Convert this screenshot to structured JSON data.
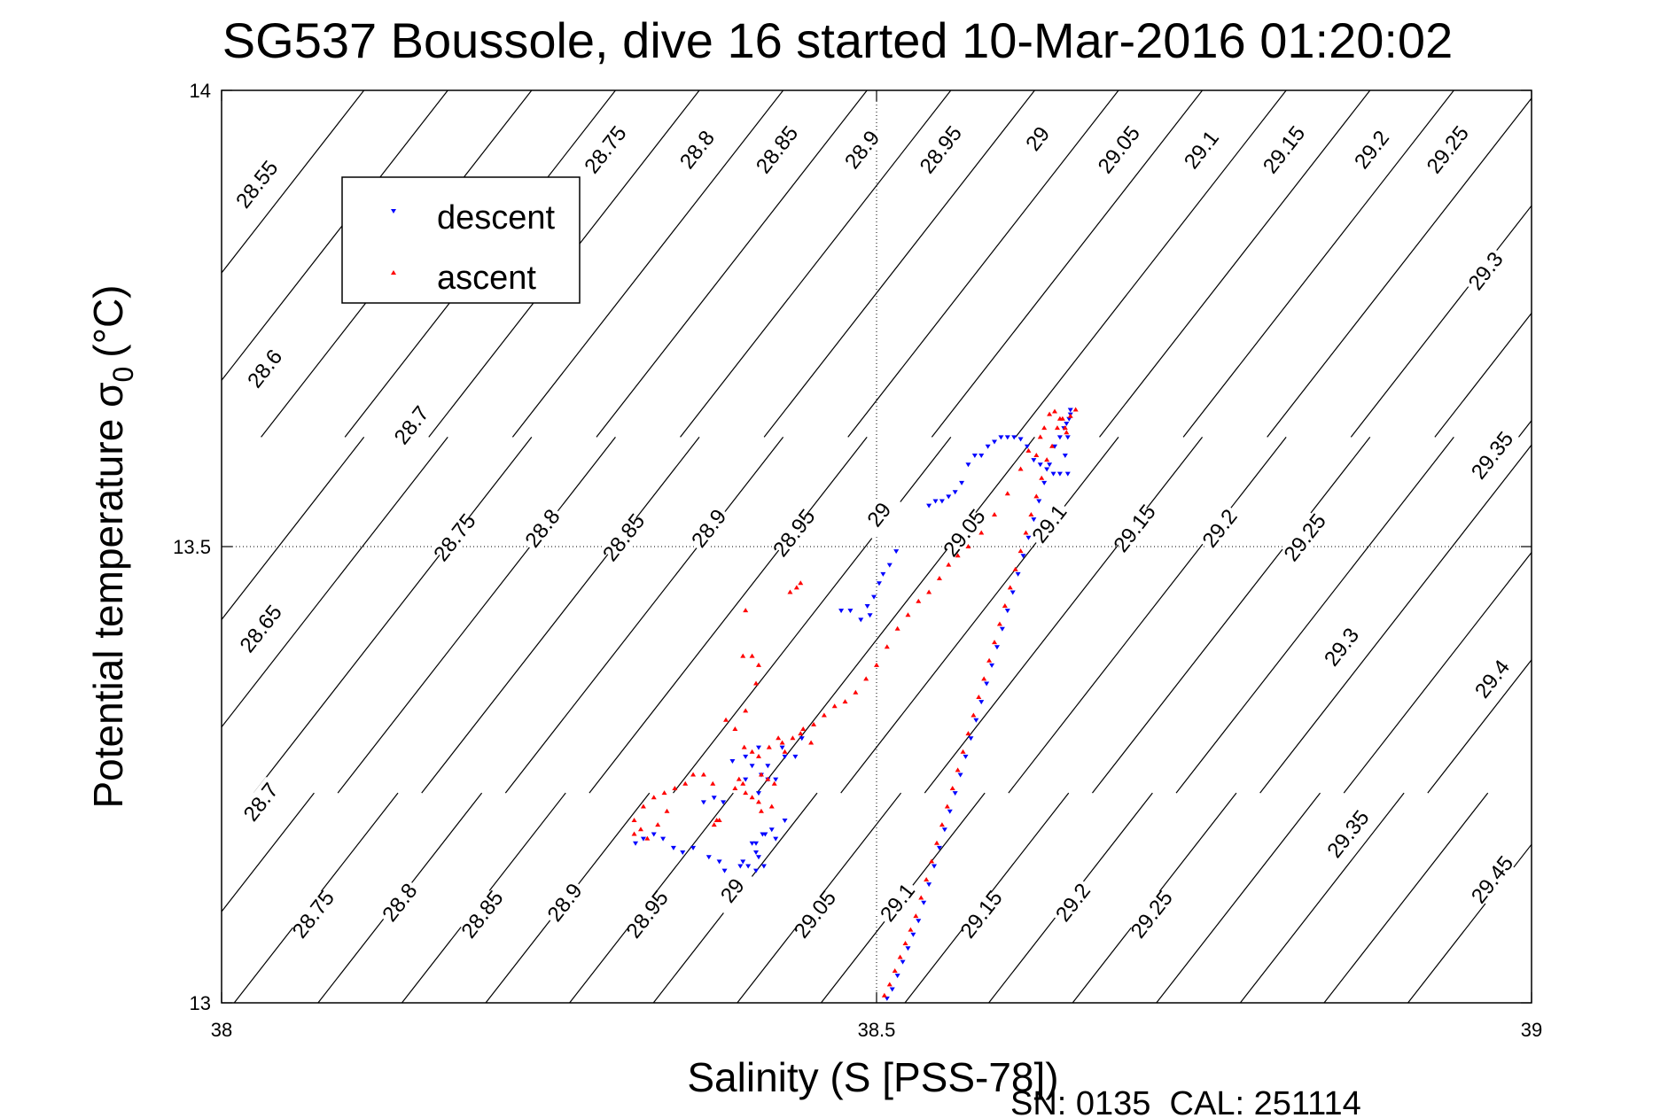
{
  "chart_data": {
    "type": "scatter",
    "title": "SG537 Boussole, dive 16 started 10-Mar-2016 01:20:02",
    "xlabel": "Salinity (S [PSS-78])",
    "ylabel_main": "Potential temperature σ",
    "ylabel_sub": "0",
    "ylabel_unit": "(°C)",
    "footer": "SN: 0135  CAL: 251114",
    "xlim": [
      38,
      39
    ],
    "ylim": [
      13,
      14
    ],
    "x_ticks": [
      {
        "value": 38,
        "label": "38"
      },
      {
        "value": 38.5,
        "label": "38.5"
      },
      {
        "value": 39,
        "label": "39"
      }
    ],
    "y_ticks": [
      {
        "value": 13,
        "label": "13"
      },
      {
        "value": 13.5,
        "label": "13.5"
      },
      {
        "value": 14,
        "label": "14"
      }
    ],
    "grid": true,
    "legend_position": "top-left",
    "series": [
      {
        "name": "descent",
        "color": "#0000ff",
        "marker": "triangle-down",
        "x": [
          38.508,
          38.512,
          38.516,
          38.52,
          38.524,
          38.528,
          38.532,
          38.536,
          38.54,
          38.544,
          38.548,
          38.552,
          38.556,
          38.56,
          38.564,
          38.568,
          38.572,
          38.576,
          38.58,
          38.584,
          38.588,
          38.592,
          38.596,
          38.6,
          38.604,
          38.608,
          38.612,
          38.616,
          38.62,
          38.624,
          38.628,
          38.632,
          38.636,
          38.64,
          38.643,
          38.645,
          38.647,
          38.648,
          38.648,
          38.646,
          38.644,
          38.646,
          38.64,
          38.635,
          38.63,
          38.625,
          38.62,
          38.615,
          38.61,
          38.605,
          38.6,
          38.595,
          38.59,
          38.585,
          38.58,
          38.575,
          38.57,
          38.565,
          38.56,
          38.555,
          38.55,
          38.545,
          38.54,
          38.493,
          38.498,
          38.502,
          38.505,
          38.51,
          38.515,
          38.473,
          38.48,
          38.488,
          38.495,
          38.443,
          38.428,
          38.417,
          38.438,
          38.43,
          38.423,
          38.41,
          38.417,
          38.412,
          38.4,
          38.405,
          38.41,
          38.4,
          38.39,
          38.405,
          38.415,
          38.42,
          38.43,
          38.423,
          38.408,
          38.414,
          38.408,
          38.402,
          38.398,
          38.41,
          38.316,
          38.322,
          38.33,
          38.337,
          38.345,
          38.352,
          38.36,
          38.372,
          38.38,
          38.384,
          38.396,
          38.408,
          38.413,
          38.368,
          38.376,
          38.383
        ],
        "y": [
          13.005,
          13.015,
          13.03,
          13.045,
          13.06,
          13.075,
          13.09,
          13.11,
          13.13,
          13.15,
          13.17,
          13.19,
          13.21,
          13.23,
          13.25,
          13.27,
          13.29,
          13.31,
          13.33,
          13.35,
          13.37,
          13.39,
          13.41,
          13.43,
          13.45,
          13.47,
          13.49,
          13.51,
          13.53,
          13.55,
          13.57,
          13.59,
          13.61,
          13.62,
          13.63,
          13.635,
          13.64,
          13.645,
          13.65,
          13.62,
          13.6,
          13.58,
          13.58,
          13.58,
          13.585,
          13.59,
          13.595,
          13.61,
          13.618,
          13.62,
          13.62,
          13.62,
          13.615,
          13.61,
          13.6,
          13.6,
          13.59,
          13.57,
          13.56,
          13.555,
          13.55,
          13.55,
          13.545,
          13.435,
          13.445,
          13.46,
          13.47,
          13.48,
          13.495,
          13.43,
          13.43,
          13.42,
          13.425,
          13.29,
          13.28,
          13.26,
          13.27,
          13.27,
          13.245,
          13.23,
          13.245,
          13.25,
          13.245,
          13.26,
          13.28,
          13.27,
          13.265,
          13.175,
          13.185,
          13.19,
          13.2,
          13.18,
          13.165,
          13.15,
          13.145,
          13.15,
          13.155,
          13.16,
          13.175,
          13.18,
          13.185,
          13.18,
          13.17,
          13.165,
          13.17,
          13.16,
          13.155,
          13.145,
          13.15,
          13.175,
          13.185,
          13.22,
          13.225,
          13.22
        ]
      },
      {
        "name": "ascent",
        "color": "#ff0000",
        "marker": "triangle-up",
        "x": [
          38.506,
          38.51,
          38.514,
          38.518,
          38.522,
          38.526,
          38.53,
          38.534,
          38.538,
          38.542,
          38.546,
          38.55,
          38.554,
          38.558,
          38.562,
          38.566,
          38.57,
          38.574,
          38.578,
          38.582,
          38.586,
          38.59,
          38.594,
          38.598,
          38.602,
          38.606,
          38.61,
          38.614,
          38.618,
          38.622,
          38.626,
          38.63,
          38.634,
          38.638,
          38.642,
          38.645,
          38.622,
          38.625,
          38.628,
          38.632,
          38.636,
          38.64,
          38.644,
          38.648,
          38.652,
          38.616,
          38.61,
          38.6,
          38.59,
          38.58,
          38.57,
          38.562,
          38.555,
          38.548,
          38.54,
          38.532,
          38.524,
          38.516,
          38.508,
          38.5,
          38.492,
          38.484,
          38.476,
          38.468,
          38.46,
          38.452,
          38.444,
          38.436,
          38.428,
          38.434,
          38.439,
          38.442,
          38.4,
          38.405,
          38.398,
          38.41,
          38.408,
          38.4,
          38.385,
          38.392,
          38.399,
          38.405,
          38.41,
          38.418,
          38.425,
          38.43,
          38.442,
          38.45,
          38.412,
          38.417,
          38.422,
          38.395,
          38.398,
          38.42,
          38.412,
          38.392,
          38.4,
          38.405,
          38.41,
          38.38,
          38.376,
          38.378,
          38.315,
          38.322,
          38.33,
          38.338,
          38.346,
          38.354,
          38.36,
          38.368,
          38.375,
          38.315,
          38.32,
          38.325,
          38.333,
          38.34
        ],
        "y": [
          13.008,
          13.02,
          13.035,
          13.05,
          13.065,
          13.08,
          13.095,
          13.115,
          13.135,
          13.155,
          13.175,
          13.195,
          13.215,
          13.235,
          13.255,
          13.275,
          13.295,
          13.315,
          13.335,
          13.355,
          13.375,
          13.395,
          13.415,
          13.435,
          13.455,
          13.475,
          13.495,
          13.515,
          13.535,
          13.555,
          13.575,
          13.595,
          13.61,
          13.63,
          13.64,
          13.625,
          13.6,
          13.62,
          13.63,
          13.645,
          13.648,
          13.64,
          13.63,
          13.643,
          13.65,
          13.605,
          13.585,
          13.558,
          13.535,
          13.515,
          13.5,
          13.49,
          13.48,
          13.465,
          13.45,
          13.44,
          13.425,
          13.41,
          13.39,
          13.37,
          13.355,
          13.34,
          13.33,
          13.325,
          13.315,
          13.305,
          13.3,
          13.29,
          13.285,
          13.45,
          13.455,
          13.46,
          13.43,
          13.38,
          13.38,
          13.37,
          13.35,
          13.32,
          13.31,
          13.3,
          13.28,
          13.275,
          13.27,
          13.28,
          13.29,
          13.275,
          13.295,
          13.285,
          13.25,
          13.245,
          13.24,
          13.245,
          13.24,
          13.215,
          13.21,
          13.235,
          13.23,
          13.225,
          13.22,
          13.2,
          13.195,
          13.2,
          13.2,
          13.215,
          13.225,
          13.23,
          13.235,
          13.24,
          13.25,
          13.25,
          13.24,
          13.185,
          13.19,
          13.18,
          13.195,
          13.21
        ]
      }
    ],
    "density_contours_top": [
      28.55,
      28.6,
      28.65,
      28.7,
      28.75,
      28.8,
      28.85,
      28.9,
      28.95,
      29,
      29.05,
      29.1,
      29.15,
      29.2,
      29.25,
      29.3,
      29.35,
      29.4,
      29.45
    ],
    "density_contours_middle": [
      28.65,
      28.7,
      28.75,
      28.8,
      28.85,
      28.9,
      28.95,
      29,
      29.05,
      29.1,
      29.15,
      29.2,
      29.25,
      29.3,
      29.35,
      29.4,
      29.45
    ],
    "density_contours_bottom": [
      28.7,
      28.75,
      28.8,
      28.85,
      28.9,
      28.95,
      29,
      29.05,
      29.1,
      29.15,
      29.2,
      29.25,
      29.3,
      29.35,
      29.4,
      29.45
    ],
    "contour_labels_top": [
      {
        "label": "28.55",
        "x": 38.027,
        "y": 13.897
      },
      {
        "label": "28.75",
        "x": 38.293,
        "y": 13.935
      },
      {
        "label": "28.8",
        "x": 38.363,
        "y": 13.935
      },
      {
        "label": "28.85",
        "x": 38.424,
        "y": 13.935
      },
      {
        "label": "28.9",
        "x": 38.489,
        "y": 13.935
      },
      {
        "label": "28.95",
        "x": 38.549,
        "y": 13.935
      },
      {
        "label": "29",
        "x": 38.623,
        "y": 13.947
      },
      {
        "label": "29.05",
        "x": 38.685,
        "y": 13.935
      },
      {
        "label": "29.1",
        "x": 38.748,
        "y": 13.935
      },
      {
        "label": "29.15",
        "x": 38.811,
        "y": 13.935
      },
      {
        "label": "29.2",
        "x": 38.878,
        "y": 13.935
      },
      {
        "label": "29.25",
        "x": 38.936,
        "y": 13.935
      },
      {
        "label": "29.3",
        "x": 38.965,
        "y": 13.802
      }
    ],
    "contour_labels_middle": [
      {
        "label": "28.6",
        "x": 38.033,
        "y": 13.695
      },
      {
        "label": "28.7",
        "x": 38.145,
        "y": 13.633
      },
      {
        "label": "28.65",
        "x": 38.03,
        "y": 13.41
      },
      {
        "label": "28.75",
        "x": 38.178,
        "y": 13.51
      },
      {
        "label": "28.8",
        "x": 38.245,
        "y": 13.52
      },
      {
        "label": "28.85",
        "x": 38.307,
        "y": 13.51
      },
      {
        "label": "28.9",
        "x": 38.372,
        "y": 13.52
      },
      {
        "label": "28.95",
        "x": 38.437,
        "y": 13.515
      },
      {
        "label": "29",
        "x": 38.502,
        "y": 13.535
      },
      {
        "label": "29.05",
        "x": 38.567,
        "y": 13.515
      },
      {
        "label": "29.1",
        "x": 38.632,
        "y": 13.525
      },
      {
        "label": "29.15",
        "x": 38.697,
        "y": 13.52
      },
      {
        "label": "29.2",
        "x": 38.762,
        "y": 13.52
      },
      {
        "label": "29.25",
        "x": 38.827,
        "y": 13.51
      },
      {
        "label": "29.35",
        "x": 38.97,
        "y": 13.6
      },
      {
        "label": "29.3",
        "x": 38.855,
        "y": 13.39
      },
      {
        "label": "29.4",
        "x": 38.97,
        "y": 13.355
      }
    ],
    "contour_labels_bottom": [
      {
        "label": "28.7",
        "x": 38.03,
        "y": 13.22
      },
      {
        "label": "28.75",
        "x": 38.07,
        "y": 13.097
      },
      {
        "label": "28.8",
        "x": 38.136,
        "y": 13.11
      },
      {
        "label": "28.85",
        "x": 38.199,
        "y": 13.097
      },
      {
        "label": "28.9",
        "x": 38.262,
        "y": 13.11
      },
      {
        "label": "28.95",
        "x": 38.325,
        "y": 13.097
      },
      {
        "label": "29",
        "x": 38.39,
        "y": 13.123
      },
      {
        "label": "29.05",
        "x": 38.453,
        "y": 13.097
      },
      {
        "label": "29.1",
        "x": 38.516,
        "y": 13.11
      },
      {
        "label": "29.15",
        "x": 38.58,
        "y": 13.097
      },
      {
        "label": "29.2",
        "x": 38.65,
        "y": 13.11
      },
      {
        "label": "29.25",
        "x": 38.71,
        "y": 13.097
      },
      {
        "label": "29.35",
        "x": 38.86,
        "y": 13.185
      },
      {
        "label": "29.45",
        "x": 38.97,
        "y": 13.135
      }
    ]
  }
}
